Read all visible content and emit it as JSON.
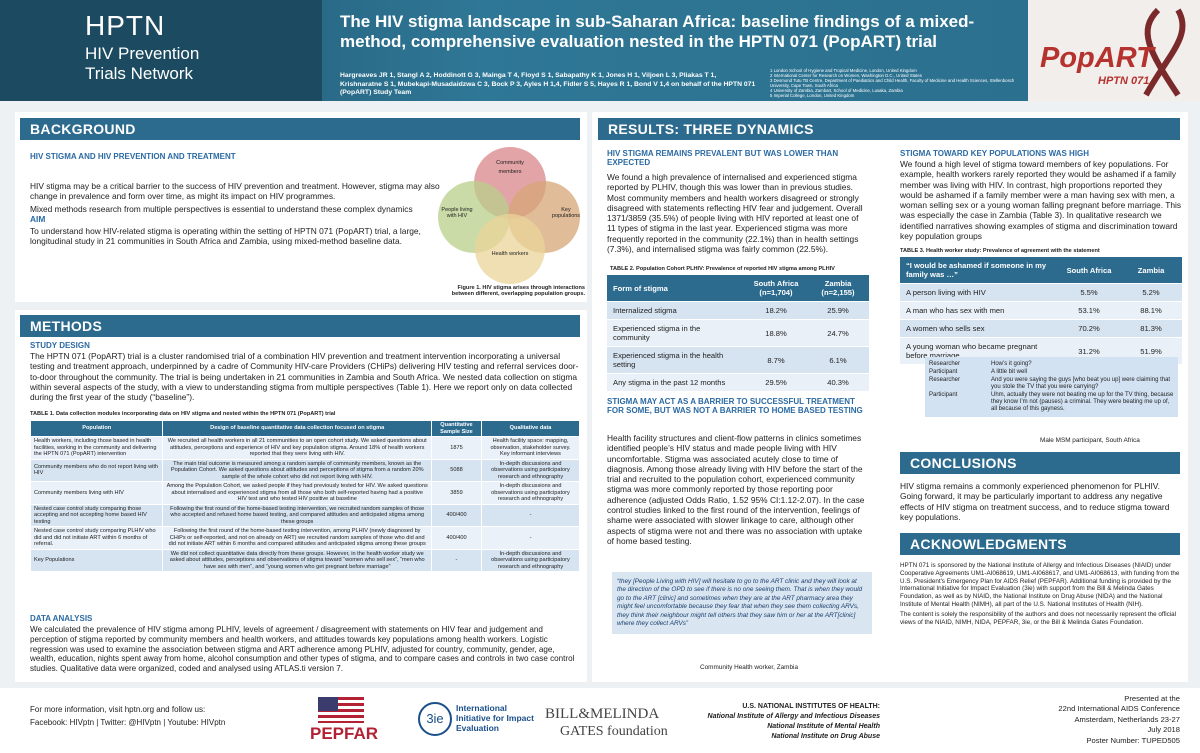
{
  "header": {
    "logo_lines": [
      "HPTN",
      "HIV Prevention",
      "Trials Network"
    ],
    "title": "The HIV stigma landscape in sub-Saharan Africa: baseline findings of a mixed-method, comprehensive evaluation nested in the HPTN 071 (PopART) trial",
    "authors": "Hargreaves JR 1, Stangl A 2, Hoddinott G 3, Mainga T 4, Floyd S 1, Sabapathy K 1, Jones H 1, Viljoen L 3, Pliakas T 1, Krishnaratne S 1, Mubekapi-Musadaidzwa C 3, Bock P 3, Ayles H 1,4, Fidler S 5, Hayes R 1, Bond V 1,4 on behalf of the HPTN 071 (PopART) Study Team",
    "affiliations": [
      "1 London School of Hygiene and Tropical Medicine, London, United Kingdom",
      "2 International Center for Research on Women, Washington D.C., United States",
      "3 Desmond Tutu TB Centre, Department of Paediatrics and Child Health, Faculty of Medicine and Health Sciences, Stellenbosch University, Cape Town, South Africa",
      "4 University of Zambia, Zambart, School of Medicine, Lusaka, Zambia",
      "5 Imperial College, London, United Kingdom"
    ],
    "logo_name": "PopART",
    "logo_sub": "HPTN 071"
  },
  "background": {
    "heading": "BACKGROUND",
    "subheading": "HIV STIGMA AND HIV PREVENTION AND TREATMENT",
    "paragraphs": [
      "HIV stigma may be a critical barrier to the success of HIV prevention and treatment. However, stigma may also change in prevalence and form over time, as might its impact on HIV programmes.",
      "Mixed methods research from multiple perspectives is essential to understand these complex dynamics"
    ],
    "aim_heading": "AIM",
    "aim": "To understand how HIV-related stigma is operating within the setting of HPTN 071 (PopART) trial, a large, longitudinal study in 21 communities in South Africa and Zambia, using mixed-method baseline data.",
    "figure": {
      "labels": [
        "Community members",
        "People living with HIV",
        "Key populations",
        "Health workers"
      ],
      "caption": "Figure 1. HIV stigma  arises through interactions between different, overlapping population groups."
    }
  },
  "methods": {
    "heading": "METHODS",
    "subheading": "STUDY DESIGN",
    "paragraph": "The HPTN 071 (PopART) trial is a cluster randomised trial of a combination HIV prevention and treatment intervention incorporating a universal testing and treatment approach, underpinned by a cadre of Community HIV-care Providers (CHiPs) delivering HIV testing and referral services door-to-door throughout the community. The trial is  being undertaken in 21 communities in Zambia and South Africa. We nested data collection on stigma within several aspects of the study, with a view to understanding stigma from multiple perspectives (Table 1). Here we report only on data collected during the first year of the study (“baseline”).",
    "table1": {
      "caption": "TABLE 1. Data collection modules incorporating data on HIV stigma and nested within the HPTN 071 (PopART) trial",
      "header": [
        "Population",
        "Design of baseline quantitative data collection focused on stigma",
        "Quantitative Sample Size",
        "Qualitative data"
      ],
      "rows": [
        [
          "Health workers, including those based in health facilities, working in the community and delivering the HPTN 071 (PopART) intervention",
          "We recruited all health workers in all 21 communities to an open cohort study. We asked questions about attitudes, perceptions and experience of HIV and key population stigma. Around 18% of health workers reported that they were living with HIV.",
          "1875",
          "Health facility space: mapping, observation, stakeholder survey. Key informant interviews"
        ],
        [
          "Community members who do not report living with HIV",
          "The main trial outcome is measured among a random sample of community members, known as the Population Cohort. We asked questions about attitudes and perceptions of stigma from a random 20% sample of the whole cohort who did not report living with HIV.",
          "5088",
          "In-depth discussions and observations using participatory research and ethnography"
        ],
        [
          "Community members living with HIV",
          "Among the Population Cohort, we asked people if they had previously tested for HIV. We asked questions about internalised and experienced stigma from all those who both self-reported having had a positive HIV test and who tested HIV positive at baseline",
          "3859",
          "In-depth discussions and observations using participatory research and ethnography"
        ],
        [
          "Nested case control study comparing those accepting and not accepting home based HIV testing",
          "Following the first round of the home-based testing intervention, we recruited random samples of those who accepted and refused home based testing, and compared attitudes and anticipated stigma among these groups",
          "400/400",
          "-"
        ],
        [
          "Nested case control study comparing PLHIV who did and did not initiate ART within 6 months of referral.",
          "Following the first round of the home-based testing intervention, among PLHIV (newly diagnosed by CHiPs or self-reported, and not on already on ART) we recruited random samples of those who did and did not initiate ART within 6 months and compared attitudes and anticipated stigma among these groups",
          "400/400",
          "-"
        ],
        [
          "Key Populations",
          "We did not collect quantitative data directly from these groups. However, in the health worker study we asked about attitudes, perceptions and observations of stigma toward “women who sell sex”, “men who have sex with men”, and “young women who get pregnant before marriage”",
          "-",
          "In-depth discussions and observations using participatory research and ethnography"
        ]
      ]
    },
    "analysis_heading": "DATA ANALYSIS",
    "analysis": "We calculated the prevalence of HIV stigma among PLHIV, levels of agreement / disagreement with statements on HIV fear and judgement and perception of stigma reported by community members and health workers, and attitudes towards key populations among health workers. Logistic regression was used to examine the association between stigma and ART adherence among PLHIV, adjusted for country, community, gender, age, wealth, education, nights spent away from home, alcohol consumption and other types of stigma, and to compare cases and controls in two case control studies. Qualitative data were organized, coded and analysed using ATLAS.ti version 7."
  },
  "results": {
    "heading": "RESULTS: THREE DYNAMICS",
    "sub1": "HIV STIGMA REMAINS PREVALENT BUT WAS LOWER THAN EXPECTED",
    "para1": "We found a high prevalence of internalised and experienced stigma reported by PLHIV, though this was lower than in previous studies. Most community members and health workers disagreed or strongly disagreed with statements reflecting HIV fear and judgement. Overall 1371/3859 (35.5%) of people living with HIV reported at least one of 11 types of stigma in the last year. Experienced stigma was more frequently reported in the community (22.1%) than in health settings (7.3%), and internalised stigma was fairly common (22.5%).",
    "table2": {
      "caption": "TABLE 2. Population Cohort PLHIV: Prevalence of reported HIV stigma among PLHIV",
      "header": [
        "Form of stigma",
        "South Africa (n=1,704)",
        "Zambia (n=2,155)"
      ],
      "rows": [
        [
          "Internalized stigma",
          "18.2%",
          "25.9%"
        ],
        [
          "Experienced stigma in the community",
          "18.8%",
          "24.7%"
        ],
        [
          "Experienced stigma in the health setting",
          "8.7%",
          "6.1%"
        ],
        [
          "Any stigma in the past 12 months",
          "29.5%",
          "40.3%"
        ]
      ]
    },
    "sub2": "STIGMA MAY ACT AS A BARRIER TO SUCCESSFUL TREATMENT FOR SOME, BUT WAS NOT A BARRIER TO HOME BASED TESTING",
    "para2": "Health facility structures and client-flow patterns in clinics sometimes identified people’s HIV status and made people living with HIV uncomfortable. Stigma was associated acutely close to time of diagnosis. Among those already living with HIV before the start of the trial and recruited to the population cohort, experienced community stigma was more commonly reported by those reporting poor adherence (adjusted Odds Ratio, 1.52 95% CI:1.12-2.07). In the case control studies linked to the first round of the intervention, feelings of shame were associated with slower linkage to care, although other aspects of stigma were not and there was no association with uptake of home based testing.",
    "quote": "“they [People Living with HIV] will hesitate to go to the ART clinic and they will look at the direction of the OPD to see if there is no one seeing them. That is when they would go to the ART [clinic] and sometimes when they are at the ART pharmacy area they might feel uncomfortable because they fear that when they see them collecting ARVs, they think their neighbour might tell others that they saw him or her at the ART[clinic] where they collect ARVs”",
    "quote_source": "Community Health worker, Zambia",
    "sub3": "STIGMA TOWARD KEY POPULATIONS WAS HIGH",
    "para3": "We found a high level of stigma toward members of key populations. For example, health workers rarely reported they would be ashamed if a family member was living with HIV. In contrast, high proportions reported they would be ashamed if a family member were a man having sex with men, a woman selling sex  or a young woman falling pregnant before marriage. This was especially the case in Zambia (Table 3). In qualitative research we identified narratives showing examples of stigma and discrimination toward key population groups",
    "table3": {
      "caption": "TABLE 3. Health worker study: Prevalence of agreement with the statement",
      "header": [
        "“I would be ashamed if someone in my family was …”",
        "South Africa",
        "Zambia"
      ],
      "rows": [
        [
          "A person living with HIV",
          "5.5%",
          "5.2%"
        ],
        [
          "A man who has sex with men",
          "53.1%",
          "88.1%"
        ],
        [
          "A women who sells sex",
          "70.2%",
          "81.3%"
        ],
        [
          "A young woman who became pregnant before marriage",
          "31.2%",
          "51.9%"
        ]
      ]
    },
    "dialogue": [
      [
        "Researcher",
        "How’s it going?"
      ],
      [
        "Participant",
        "A little bit well"
      ],
      [
        "Researcher",
        "And you were saying the guys [who beat you up] were claiming that you stole the TV that you were carrying?"
      ],
      [
        "Participant",
        "Uhm, actually they were not beating me up for the TV thing, because they know I’m not (pauses) a criminal. They were beating me up of, all because of this gayness."
      ]
    ],
    "dialogue_source": "Male MSM participant, South Africa"
  },
  "conclusions": {
    "heading": "CONCLUSIONS",
    "text": "HIV stigma remains a commonly experienced phenomenon for PLHIV. Going forward, it may be particularly important to address any negative effects of HIV stigma on treatment success, and to reduce stigma toward key populations."
  },
  "acknowledgments": {
    "heading": "ACKNOWLEDGMENTS",
    "paragraphs": [
      "HPTN 071 is sponsored by the National Institute of Allergy and Infectious Diseases (NIAID) under Cooperative Agreements UM1-AI068619, UM1-AI068617, and UM1-AI068613, with funding from the U.S. President's Emergency Plan for AIDS Relief (PEPFAR). Additional funding is provided by the International Initiative for Impact Evaluation (3ie) with support from the Bill & Melinda Gates Foundation, as well as by NIAID, the National Institute on Drug Abuse (NIDA) and the National Institute of Mental Health (NIMH), all part of the U.S. National Institutes of Health (NIH).",
      "The content is solely the responsibility of the authors and does not necessarily represent the official views of the NIAID, NIMH, NIDA, PEPFAR, 3ie, or the Bill & Melinda Gates Foundation."
    ]
  },
  "footer": {
    "contact": [
      "For more information, visit hptn.org and follow us:",
      "Facebook: HIVptn | Twitter: @HIVptn | Youtube: HIVptn"
    ],
    "pepfar": "PEPFAR",
    "ie_mark": "3ie",
    "ie_name": "International Initiative for Impact Evaluation",
    "gates": "BILL&MELINDA",
    "gates2": "GATES foundation",
    "nih": [
      "U.S. NATIONAL INSTITUTES OF HEALTH:",
      "National Institute of Allergy and Infectious Diseases",
      "National Institute of Mental Health",
      "National Institute on Drug Abuse"
    ],
    "presented": [
      "Presented at the",
      "22nd International AIDS Conference",
      "Amsterdam, Netherlands 23-27",
      "July 2018",
      "Poster Number: TUPED505"
    ]
  }
}
